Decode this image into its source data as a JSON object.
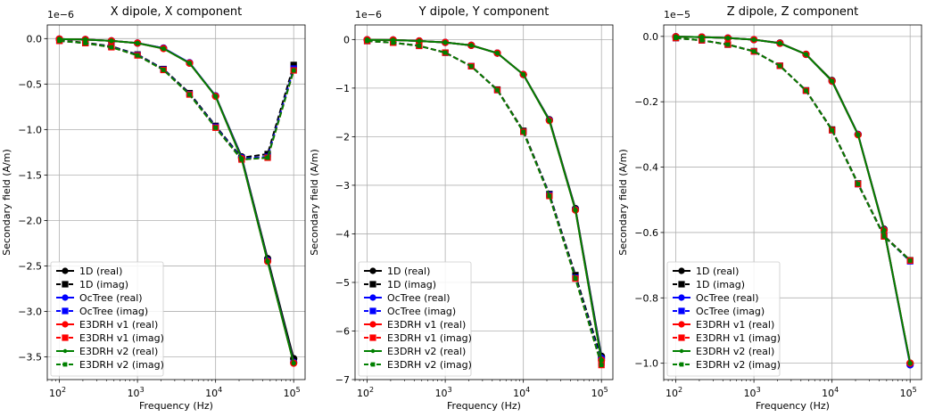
{
  "chart_data": [
    {
      "type": "line",
      "title": "X dipole, X component",
      "xlabel": "Frequency (Hz)",
      "ylabel": "Secondary field (A/m)",
      "offset_text": "1e−6",
      "xscale": "log",
      "xlim": [
        70,
        140000
      ],
      "ylim": [
        -3.75,
        0.15
      ],
      "xticks": [
        100,
        1000,
        10000,
        100000
      ],
      "xtick_labels": [
        [
          "10",
          "2"
        ],
        [
          "10",
          "3"
        ],
        [
          "10",
          "4"
        ],
        [
          "10",
          "5"
        ]
      ],
      "yticks": [
        0,
        -0.5,
        -1.0,
        -1.5,
        -2.0,
        -2.5,
        -3.0,
        -3.5
      ],
      "ytick_labels": [
        "0.0",
        "−0.5",
        "−1.0",
        "−1.5",
        "−2.0",
        "−2.5",
        "−3.0",
        "−3.5"
      ],
      "grid": true,
      "legend_position": "lower-left",
      "x": [
        100,
        215,
        464,
        1000,
        2154,
        4642,
        10000,
        21544,
        46416,
        100000
      ],
      "series": [
        {
          "name": "1D (real)",
          "color": "#000000",
          "style": "solid",
          "marker": "circle",
          "values": [
            -0.005,
            -0.01,
            -0.025,
            -0.05,
            -0.105,
            -0.27,
            -0.63,
            -1.3,
            -2.42,
            -3.52
          ]
        },
        {
          "name": "1D (imag)",
          "color": "#000000",
          "style": "dashed",
          "marker": "square",
          "values": [
            -0.02,
            -0.045,
            -0.085,
            -0.175,
            -0.335,
            -0.6,
            -0.96,
            -1.31,
            -1.27,
            -0.29
          ]
        },
        {
          "name": "OcTree (real)",
          "color": "#0000ff",
          "style": "solid",
          "marker": "circle",
          "values": [
            -0.005,
            -0.01,
            -0.025,
            -0.05,
            -0.105,
            -0.265,
            -0.63,
            -1.31,
            -2.44,
            -3.56
          ]
        },
        {
          "name": "OcTree (imag)",
          "color": "#0000ff",
          "style": "dashed",
          "marker": "square",
          "values": [
            -0.025,
            -0.05,
            -0.09,
            -0.18,
            -0.34,
            -0.61,
            -0.97,
            -1.32,
            -1.3,
            -0.33
          ]
        },
        {
          "name": "E3DRH v1 (real)",
          "color": "#ff0000",
          "style": "solid",
          "marker": "circle",
          "values": [
            -0.005,
            -0.01,
            -0.025,
            -0.05,
            -0.11,
            -0.27,
            -0.635,
            -1.32,
            -2.45,
            -3.57
          ]
        },
        {
          "name": "E3DRH v1 (imag)",
          "color": "#ff0000",
          "style": "dashed",
          "marker": "square",
          "values": [
            -0.025,
            -0.05,
            -0.095,
            -0.185,
            -0.345,
            -0.615,
            -0.98,
            -1.33,
            -1.31,
            -0.35
          ]
        },
        {
          "name": "E3DRH v2 (real)",
          "color": "#008000",
          "style": "solid",
          "marker": "circle-small",
          "values": [
            -0.005,
            -0.01,
            -0.025,
            -0.05,
            -0.11,
            -0.27,
            -0.635,
            -1.32,
            -2.45,
            -3.57
          ]
        },
        {
          "name": "E3DRH v2 (imag)",
          "color": "#008000",
          "style": "dashed",
          "marker": "square-small",
          "values": [
            -0.025,
            -0.05,
            -0.095,
            -0.185,
            -0.345,
            -0.615,
            -0.98,
            -1.33,
            -1.31,
            -0.35
          ]
        }
      ]
    },
    {
      "type": "line",
      "title": "Y dipole, Y component",
      "xlabel": "Frequency (Hz)",
      "ylabel": "Secondary field (A/m)",
      "offset_text": "1e−6",
      "xscale": "log",
      "xlim": [
        70,
        140000
      ],
      "ylim": [
        -7.0,
        0.3
      ],
      "xticks": [
        100,
        1000,
        10000,
        100000
      ],
      "xtick_labels": [
        [
          "10",
          "2"
        ],
        [
          "10",
          "3"
        ],
        [
          "10",
          "4"
        ],
        [
          "10",
          "5"
        ]
      ],
      "yticks": [
        0,
        -1,
        -2,
        -3,
        -4,
        -5,
        -6,
        -7
      ],
      "ytick_labels": [
        "0",
        "−1",
        "−2",
        "−3",
        "−4",
        "−5",
        "−6",
        "−7"
      ],
      "grid": true,
      "legend_position": "lower-left",
      "x": [
        100,
        215,
        464,
        1000,
        2154,
        4642,
        10000,
        21544,
        46416,
        100000
      ],
      "series": [
        {
          "name": "1D (real)",
          "color": "#000000",
          "style": "solid",
          "marker": "circle",
          "values": [
            -0.005,
            -0.01,
            -0.03,
            -0.06,
            -0.12,
            -0.28,
            -0.72,
            -1.65,
            -3.48,
            -6.52
          ]
        },
        {
          "name": "1D (imag)",
          "color": "#000000",
          "style": "dashed",
          "marker": "square",
          "values": [
            -0.03,
            -0.065,
            -0.13,
            -0.27,
            -0.55,
            -1.03,
            -1.88,
            -3.18,
            -4.85,
            -6.58
          ]
        },
        {
          "name": "OcTree (real)",
          "color": "#0000ff",
          "style": "solid",
          "marker": "circle",
          "values": [
            -0.005,
            -0.01,
            -0.03,
            -0.06,
            -0.12,
            -0.28,
            -0.72,
            -1.66,
            -3.5,
            -6.56
          ]
        },
        {
          "name": "OcTree (imag)",
          "color": "#0000ff",
          "style": "dashed",
          "marker": "square",
          "values": [
            -0.03,
            -0.065,
            -0.13,
            -0.27,
            -0.55,
            -1.04,
            -1.9,
            -3.2,
            -4.9,
            -6.65
          ]
        },
        {
          "name": "E3DRH v1 (real)",
          "color": "#ff0000",
          "style": "solid",
          "marker": "circle",
          "values": [
            -0.005,
            -0.01,
            -0.03,
            -0.06,
            -0.12,
            -0.28,
            -0.72,
            -1.67,
            -3.51,
            -6.6
          ]
        },
        {
          "name": "E3DRH v1 (imag)",
          "color": "#ff0000",
          "style": "dashed",
          "marker": "square",
          "values": [
            -0.03,
            -0.065,
            -0.13,
            -0.27,
            -0.55,
            -1.04,
            -1.9,
            -3.22,
            -4.92,
            -6.7
          ]
        },
        {
          "name": "E3DRH v2 (real)",
          "color": "#008000",
          "style": "solid",
          "marker": "circle-small",
          "values": [
            -0.005,
            -0.01,
            -0.03,
            -0.06,
            -0.12,
            -0.28,
            -0.72,
            -1.67,
            -3.51,
            -6.6
          ]
        },
        {
          "name": "E3DRH v2 (imag)",
          "color": "#008000",
          "style": "dashed",
          "marker": "square-small",
          "values": [
            -0.03,
            -0.065,
            -0.13,
            -0.27,
            -0.55,
            -1.04,
            -1.9,
            -3.22,
            -4.92,
            -6.7
          ]
        }
      ]
    },
    {
      "type": "line",
      "title": "Z dipole, Z component",
      "xlabel": "Frequency (Hz)",
      "ylabel": "Secondary field (A/m)",
      "offset_text": "1e−5",
      "xscale": "log",
      "xlim": [
        70,
        140000
      ],
      "ylim": [
        -1.05,
        0.035
      ],
      "xticks": [
        100,
        1000,
        10000,
        100000
      ],
      "xtick_labels": [
        [
          "10",
          "2"
        ],
        [
          "10",
          "3"
        ],
        [
          "10",
          "4"
        ],
        [
          "10",
          "5"
        ]
      ],
      "yticks": [
        0,
        -0.2,
        -0.4,
        -0.6,
        -0.8,
        -1.0
      ],
      "ytick_labels": [
        "0.0",
        "−0.2",
        "−0.4",
        "−0.6",
        "−0.8",
        "−1.0"
      ],
      "grid": true,
      "legend_position": "lower-left",
      "x": [
        100,
        215,
        464,
        1000,
        2154,
        4642,
        10000,
        21544,
        46416,
        100000
      ],
      "series": [
        {
          "name": "1D (real)",
          "color": "#000000",
          "style": "solid",
          "marker": "circle",
          "values": [
            -0.001,
            -0.002,
            -0.005,
            -0.01,
            -0.02,
            -0.055,
            -0.135,
            -0.3,
            -0.59,
            -1.0
          ]
        },
        {
          "name": "1D (imag)",
          "color": "#000000",
          "style": "dashed",
          "marker": "square",
          "values": [
            -0.005,
            -0.012,
            -0.025,
            -0.045,
            -0.09,
            -0.165,
            -0.285,
            -0.45,
            -0.61,
            -0.685
          ]
        },
        {
          "name": "OcTree (real)",
          "color": "#0000ff",
          "style": "solid",
          "marker": "circle",
          "values": [
            -0.001,
            -0.002,
            -0.005,
            -0.01,
            -0.021,
            -0.055,
            -0.137,
            -0.3,
            -0.592,
            -1.005
          ]
        },
        {
          "name": "OcTree (imag)",
          "color": "#0000ff",
          "style": "dashed",
          "marker": "square",
          "values": [
            -0.005,
            -0.012,
            -0.025,
            -0.046,
            -0.09,
            -0.166,
            -0.287,
            -0.452,
            -0.612,
            -0.688
          ]
        },
        {
          "name": "E3DRH v1 (real)",
          "color": "#ff0000",
          "style": "solid",
          "marker": "circle",
          "values": [
            -0.001,
            -0.002,
            -0.005,
            -0.01,
            -0.021,
            -0.055,
            -0.137,
            -0.301,
            -0.593,
            -1.0
          ]
        },
        {
          "name": "E3DRH v1 (imag)",
          "color": "#ff0000",
          "style": "dashed",
          "marker": "square",
          "values": [
            -0.005,
            -0.012,
            -0.025,
            -0.046,
            -0.09,
            -0.166,
            -0.287,
            -0.452,
            -0.612,
            -0.686
          ]
        },
        {
          "name": "E3DRH v2 (real)",
          "color": "#008000",
          "style": "solid",
          "marker": "circle-small",
          "values": [
            -0.001,
            -0.002,
            -0.005,
            -0.01,
            -0.021,
            -0.055,
            -0.137,
            -0.301,
            -0.593,
            -1.0
          ]
        },
        {
          "name": "E3DRH v2 (imag)",
          "color": "#008000",
          "style": "dashed",
          "marker": "square-small",
          "values": [
            -0.005,
            -0.012,
            -0.025,
            -0.046,
            -0.09,
            -0.166,
            -0.287,
            -0.452,
            -0.612,
            -0.686
          ]
        }
      ]
    }
  ]
}
